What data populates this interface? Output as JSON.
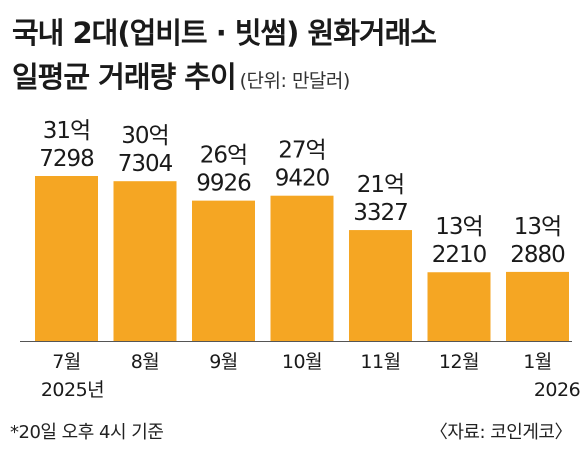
{
  "chart_data": {
    "type": "bar",
    "title_line1": "국내 2대(업비트 · 빗썸) 원화거래소",
    "title_line2": "일평균 거래량 추이",
    "unit": "(단위: 만달러)",
    "categories": [
      "7월",
      "8월",
      "9월",
      "10월",
      "11월",
      "12월",
      "1월"
    ],
    "year_labels": [
      "2025년",
      "",
      "",
      "",
      "",
      "",
      "2026년"
    ],
    "values": [
      317298,
      307304,
      269926,
      279420,
      213327,
      132210,
      132880
    ],
    "label_top": [
      "31억",
      "30억",
      "26억",
      "27억",
      "21억",
      "13억",
      "13억"
    ],
    "label_bottom": [
      "7298",
      "7304",
      "9926",
      "9420",
      "3327",
      "2210",
      "2880"
    ],
    "ylim": [
      0,
      320000
    ],
    "bar_color": "#f5a623"
  },
  "footnote": "*20일 오후 4시 기준",
  "source": "〈자료: 코인게코〉"
}
